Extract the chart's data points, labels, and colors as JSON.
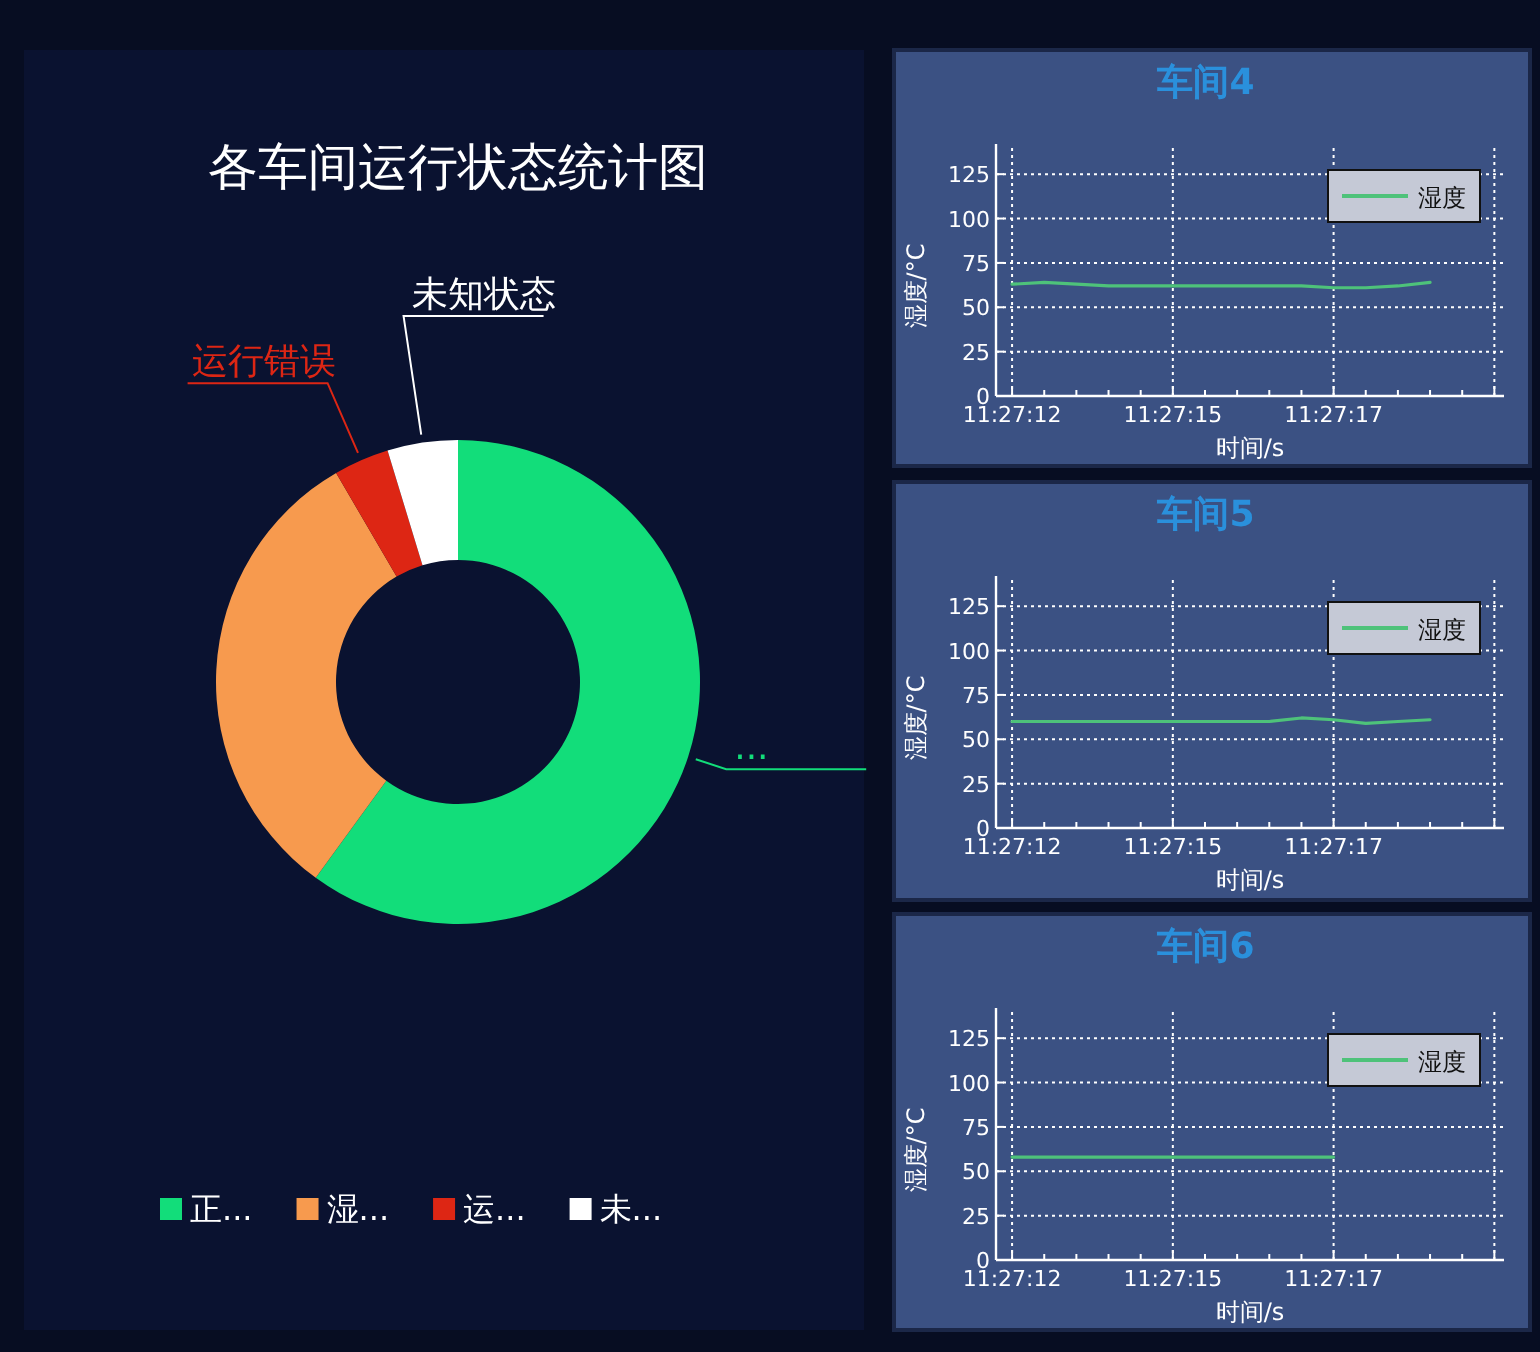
{
  "chart_data": [
    {
      "type": "donut",
      "title": "各车间运行状态统计图",
      "categories": [
        "正...",
        "湿...",
        "运...",
        "未..."
      ],
      "values": [
        60,
        31.6,
        3.7,
        4.7
      ],
      "colors": [
        "#12dd7a",
        "#f79a4e",
        "#dd2614",
        "#ffffff"
      ],
      "legend": "bottom",
      "annotations": [
        {
          "text": "...",
          "x": "正..."
        },
        {
          "text": "运行错误",
          "x": "运..."
        },
        {
          "text": "未知状态",
          "x": "未..."
        }
      ]
    },
    {
      "type": "line",
      "title": "车间4",
      "xlabel": "时间/s",
      "ylabel": "湿度/°C",
      "categories": [
        "11:27:12",
        null,
        null,
        null,
        null,
        "11:27:15",
        null,
        null,
        null,
        null,
        "11:27:17",
        null,
        null,
        null,
        null,
        null
      ],
      "ylim": [
        0,
        142
      ],
      "yticks": [
        0,
        25,
        50,
        75,
        100,
        125
      ],
      "grid": true,
      "legend": "top right",
      "series": [
        {
          "name": "湿度",
          "color": "#4ec27a",
          "values": [
            63,
            64,
            63,
            62,
            62,
            62,
            62,
            62,
            62,
            62,
            61,
            61,
            62,
            64,
            null,
            null
          ]
        }
      ]
    },
    {
      "type": "line",
      "title": "车间5",
      "xlabel": "时间/s",
      "ylabel": "湿度/°C",
      "categories": [
        "11:27:12",
        null,
        null,
        null,
        null,
        "11:27:15",
        null,
        null,
        null,
        null,
        "11:27:17",
        null,
        null,
        null,
        null,
        null
      ],
      "ylim": [
        0,
        142
      ],
      "yticks": [
        0,
        25,
        50,
        75,
        100,
        125
      ],
      "grid": true,
      "legend": "top right",
      "series": [
        {
          "name": "湿度",
          "color": "#4ec27a",
          "values": [
            60,
            60,
            60,
            60,
            60,
            60,
            60,
            60,
            60,
            62,
            61,
            59,
            60,
            61,
            null,
            null
          ]
        }
      ]
    },
    {
      "type": "line",
      "title": "车间6",
      "xlabel": "时间/s",
      "ylabel": "湿度/°C",
      "categories": [
        "11:27:12",
        null,
        null,
        null,
        null,
        "11:27:15",
        null,
        null,
        null,
        null,
        "11:27:17",
        null,
        null,
        null,
        null,
        null
      ],
      "ylim": [
        0,
        142
      ],
      "yticks": [
        0,
        25,
        50,
        75,
        100,
        125
      ],
      "grid": true,
      "legend": "top right",
      "series": [
        {
          "name": "湿度",
          "color": "#4ec27a",
          "values": [
            58,
            58,
            58,
            58,
            58,
            58,
            58,
            58,
            58,
            58,
            58,
            null,
            null,
            null,
            null,
            null
          ]
        }
      ]
    }
  ]
}
